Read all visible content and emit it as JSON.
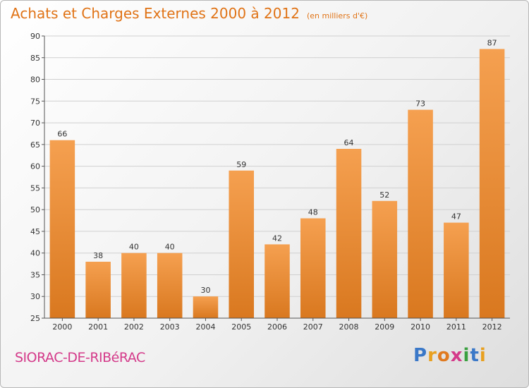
{
  "header": {
    "title": "Achats et Charges Externes 2000 à 2012",
    "subtitle": "(en milliers d'€)"
  },
  "footer": {
    "commune": "SIORAC-DE-RIBéRAC",
    "logo_letters": [
      "P",
      "r",
      "o",
      "x",
      "i",
      "t",
      "i"
    ]
  },
  "colors": {
    "title": "#e07316",
    "bar_top": "#f5a050",
    "bar_bottom": "#d9781f",
    "commune": "#d43a8a",
    "logo": [
      "#3a78c8",
      "#e8a020",
      "#e07a20",
      "#d43a8a",
      "#3aa040",
      "#3a78c8",
      "#e8a020"
    ]
  },
  "chart_data": {
    "type": "bar",
    "categories": [
      "2000",
      "2001",
      "2002",
      "2003",
      "2004",
      "2005",
      "2006",
      "2007",
      "2008",
      "2009",
      "2010",
      "2011",
      "2012"
    ],
    "values": [
      66,
      38,
      40,
      40,
      30,
      59,
      42,
      48,
      64,
      52,
      73,
      47,
      87
    ],
    "ylim": [
      25,
      90
    ],
    "yticks": [
      25,
      30,
      35,
      40,
      45,
      50,
      55,
      60,
      65,
      70,
      75,
      80,
      85,
      90
    ],
    "grid": true,
    "data_labels": true
  }
}
